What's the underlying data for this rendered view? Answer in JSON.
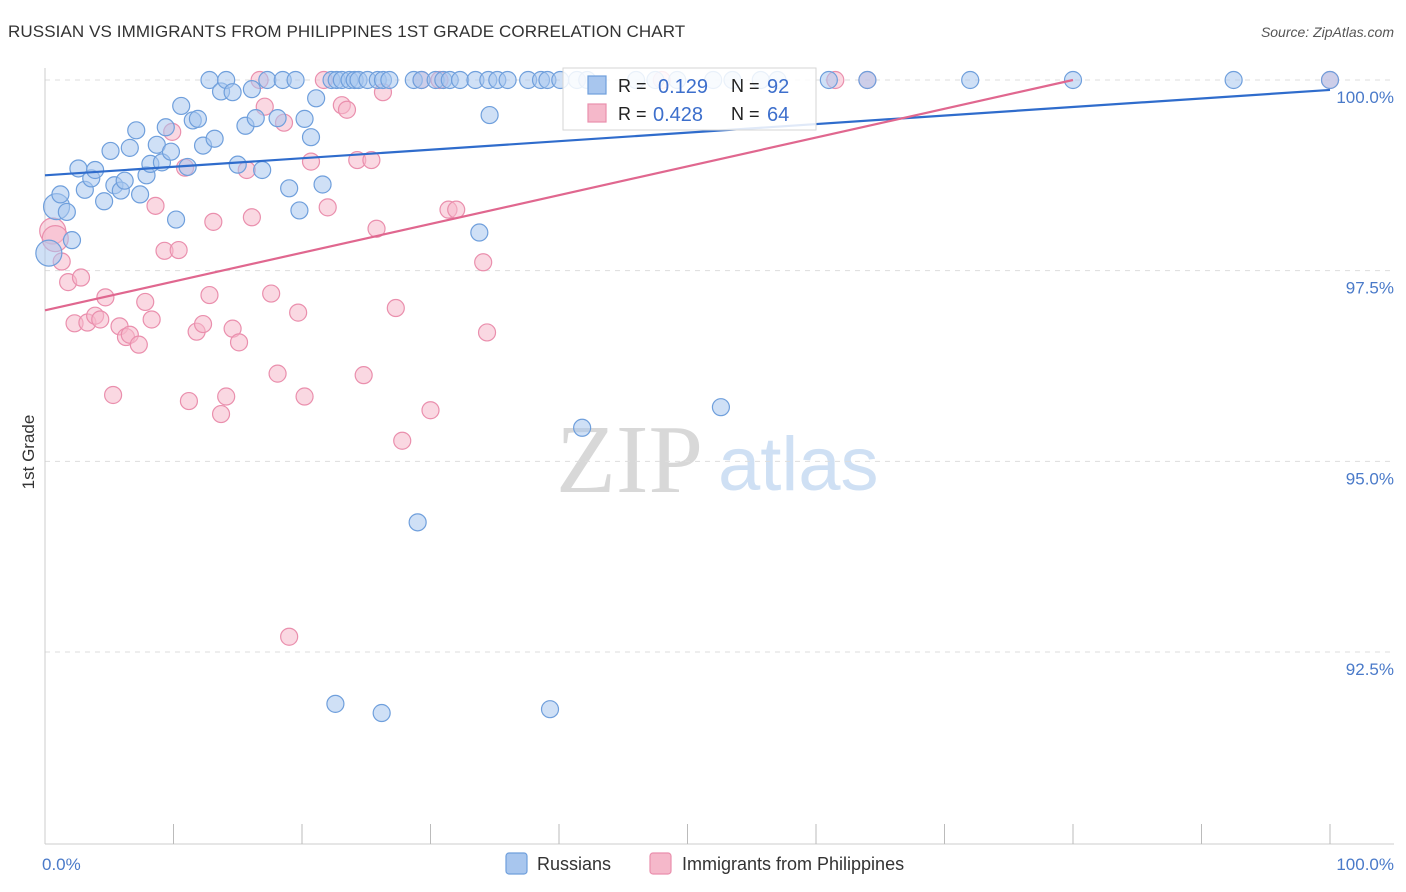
{
  "header": {
    "title": "RUSSIAN VS IMMIGRANTS FROM PHILIPPINES 1ST GRADE CORRELATION CHART",
    "source": "Source: ZipAtlas.com"
  },
  "watermark": {
    "zip": "ZIP",
    "atlas": "atlas"
  },
  "colors": {
    "blue_fill": "#a8c6ee",
    "blue_stroke": "#6f9fdc",
    "blue_line": "#2f6ccc",
    "pink_fill": "#f5b8ca",
    "pink_stroke": "#ea8fad",
    "pink_line": "#e0678f",
    "tick_text": "#4a7ac9",
    "grid": "#dddddd"
  },
  "stats_legend": {
    "rows": [
      {
        "r_label": "R =",
        "r_value": "0.129",
        "n_label": "N =",
        "n_value": "92"
      },
      {
        "r_label": "R =",
        "r_value": "0.428",
        "n_label": "N =",
        "n_value": "64"
      }
    ]
  },
  "chart_data": {
    "type": "scatter",
    "title": "RUSSIAN VS IMMIGRANTS FROM PHILIPPINES 1ST GRADE CORRELATION CHART",
    "xlabel": "",
    "ylabel": "1st Grade",
    "xlim": [
      0,
      100
    ],
    "ylim": [
      90.0,
      100.2
    ],
    "x_tick_labels": [
      "0.0%",
      "100.0%"
    ],
    "y_ticks": [
      {
        "value": 100.0,
        "label": "100.0%"
      },
      {
        "value": 97.5,
        "label": "97.5%"
      },
      {
        "value": 95.0,
        "label": "95.0%"
      },
      {
        "value": 92.5,
        "label": "92.5%"
      }
    ],
    "grid": true,
    "legend_position": "bottom-center",
    "series": [
      {
        "name": "Russians",
        "r": 0.129,
        "n": 92,
        "trend": {
          "x": [
            0,
            100
          ],
          "y": [
            98.75,
            99.87
          ]
        },
        "points": [
          [
            0.3,
            97.73
          ],
          [
            0.9,
            98.34
          ],
          [
            1.2,
            98.5
          ],
          [
            1.7,
            98.27
          ],
          [
            2.1,
            97.9
          ],
          [
            2.6,
            98.84
          ],
          [
            3.1,
            98.56
          ],
          [
            3.6,
            98.71
          ],
          [
            3.9,
            98.82
          ],
          [
            4.6,
            98.41
          ],
          [
            5.1,
            99.07
          ],
          [
            5.4,
            98.62
          ],
          [
            5.9,
            98.55
          ],
          [
            6.2,
            98.68
          ],
          [
            6.6,
            99.11
          ],
          [
            7.1,
            99.34
          ],
          [
            7.4,
            98.5
          ],
          [
            7.9,
            98.75
          ],
          [
            8.2,
            98.9
          ],
          [
            8.7,
            99.15
          ],
          [
            9.1,
            98.92
          ],
          [
            9.4,
            99.38
          ],
          [
            9.8,
            99.06
          ],
          [
            10.2,
            98.17
          ],
          [
            10.6,
            99.66
          ],
          [
            11.1,
            98.86
          ],
          [
            11.5,
            99.47
          ],
          [
            11.9,
            99.49
          ],
          [
            12.3,
            99.14
          ],
          [
            12.8,
            100.0
          ],
          [
            13.2,
            99.23
          ],
          [
            13.7,
            99.85
          ],
          [
            14.1,
            100.0
          ],
          [
            14.6,
            99.84
          ],
          [
            15.0,
            98.89
          ],
          [
            15.6,
            99.4
          ],
          [
            16.1,
            99.88
          ],
          [
            16.4,
            99.5
          ],
          [
            16.9,
            98.82
          ],
          [
            17.3,
            100.0
          ],
          [
            18.1,
            99.5
          ],
          [
            18.5,
            100.0
          ],
          [
            19.0,
            98.58
          ],
          [
            19.5,
            100.0
          ],
          [
            19.8,
            98.29
          ],
          [
            20.2,
            99.49
          ],
          [
            20.7,
            99.25
          ],
          [
            21.1,
            99.76
          ],
          [
            21.6,
            98.63
          ],
          [
            22.3,
            100.0
          ],
          [
            22.7,
            100.0
          ],
          [
            23.1,
            100.0
          ],
          [
            23.7,
            100.0
          ],
          [
            24.1,
            100.0
          ],
          [
            24.4,
            100.0
          ],
          [
            25.1,
            100.0
          ],
          [
            25.9,
            100.0
          ],
          [
            26.3,
            100.0
          ],
          [
            26.8,
            100.0
          ],
          [
            28.7,
            100.0
          ],
          [
            29.3,
            100.0
          ],
          [
            30.4,
            100.0
          ],
          [
            31.0,
            100.0
          ],
          [
            31.5,
            100.0
          ],
          [
            32.3,
            100.0
          ],
          [
            33.5,
            100.0
          ],
          [
            34.5,
            100.0
          ],
          [
            35.2,
            100.0
          ],
          [
            36.0,
            100.0
          ],
          [
            37.6,
            100.0
          ],
          [
            38.6,
            100.0
          ],
          [
            39.1,
            100.0
          ],
          [
            40.1,
            100.0
          ],
          [
            41.4,
            100.0
          ],
          [
            42.2,
            100.0
          ],
          [
            46.0,
            100.0
          ],
          [
            47.5,
            100.0
          ],
          [
            49.2,
            100.0
          ],
          [
            52.0,
            100.0
          ],
          [
            53.5,
            100.0
          ],
          [
            55.7,
            100.0
          ],
          [
            57.0,
            100.0
          ],
          [
            61.0,
            100.0
          ],
          [
            64.0,
            100.0
          ],
          [
            72.0,
            100.0
          ],
          [
            80.0,
            100.0
          ],
          [
            92.5,
            100.0
          ],
          [
            100.0,
            100.0
          ],
          [
            34.6,
            99.54
          ],
          [
            41.8,
            95.44
          ],
          [
            52.6,
            95.71
          ],
          [
            29.0,
            94.2
          ]
        ],
        "outliers": [
          [
            22.6,
            91.82
          ],
          [
            26.2,
            91.7
          ],
          [
            39.3,
            91.75
          ],
          [
            33.8,
            98.0
          ]
        ]
      },
      {
        "name": "Immigrants from Philippines",
        "r": 0.428,
        "n": 64,
        "trend": {
          "x": [
            0,
            80
          ],
          "y": [
            96.98,
            100.0
          ]
        },
        "points": [
          [
            0.6,
            98.02
          ],
          [
            0.8,
            97.92
          ],
          [
            1.3,
            97.62
          ],
          [
            1.8,
            97.35
          ],
          [
            2.3,
            96.81
          ],
          [
            2.8,
            97.41
          ],
          [
            3.3,
            96.82
          ],
          [
            3.9,
            96.91
          ],
          [
            4.3,
            96.86
          ],
          [
            4.7,
            97.15
          ],
          [
            5.3,
            95.87
          ],
          [
            5.8,
            96.77
          ],
          [
            6.3,
            96.63
          ],
          [
            6.6,
            96.66
          ],
          [
            7.3,
            96.53
          ],
          [
            7.8,
            97.09
          ],
          [
            8.3,
            96.86
          ],
          [
            8.6,
            98.35
          ],
          [
            9.3,
            97.76
          ],
          [
            9.9,
            99.32
          ],
          [
            10.4,
            97.77
          ],
          [
            10.9,
            98.85
          ],
          [
            11.2,
            95.79
          ],
          [
            11.8,
            96.7
          ],
          [
            12.3,
            96.8
          ],
          [
            12.8,
            97.18
          ],
          [
            13.1,
            98.14
          ],
          [
            13.7,
            95.62
          ],
          [
            14.1,
            95.85
          ],
          [
            14.6,
            96.74
          ],
          [
            15.1,
            96.56
          ],
          [
            15.7,
            98.82
          ],
          [
            16.1,
            98.2
          ],
          [
            16.7,
            100.0
          ],
          [
            17.1,
            99.65
          ],
          [
            17.6,
            97.2
          ],
          [
            18.1,
            96.15
          ],
          [
            18.6,
            99.44
          ],
          [
            19.0,
            92.7
          ],
          [
            19.7,
            96.95
          ],
          [
            20.2,
            95.85
          ],
          [
            20.7,
            98.93
          ],
          [
            21.7,
            100.0
          ],
          [
            22.0,
            98.33
          ],
          [
            23.1,
            99.67
          ],
          [
            23.5,
            99.61
          ],
          [
            24.3,
            98.95
          ],
          [
            24.8,
            96.13
          ],
          [
            25.4,
            98.95
          ],
          [
            25.8,
            98.05
          ],
          [
            26.3,
            99.84
          ],
          [
            27.3,
            97.01
          ],
          [
            27.8,
            95.27
          ],
          [
            29.3,
            100.0
          ],
          [
            30.0,
            95.67
          ],
          [
            30.7,
            100.0
          ],
          [
            31.4,
            98.3
          ],
          [
            32.0,
            98.3
          ],
          [
            34.1,
            97.61
          ],
          [
            34.4,
            96.69
          ],
          [
            48.0,
            100.0
          ],
          [
            61.5,
            100.0
          ],
          [
            64.0,
            100.0
          ],
          [
            100.0,
            100.0
          ]
        ]
      }
    ]
  }
}
